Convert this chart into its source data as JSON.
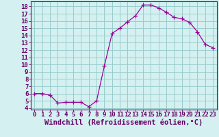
{
  "x": [
    0,
    1,
    2,
    3,
    4,
    5,
    6,
    7,
    8,
    9,
    10,
    11,
    12,
    13,
    14,
    15,
    16,
    17,
    18,
    19,
    20,
    21,
    22,
    23
  ],
  "y": [
    6.0,
    6.0,
    5.8,
    4.7,
    4.8,
    4.8,
    4.8,
    4.2,
    5.0,
    9.8,
    14.3,
    15.0,
    15.9,
    16.7,
    18.2,
    18.2,
    17.8,
    17.2,
    16.5,
    16.3,
    15.8,
    14.5,
    12.8,
    12.3
  ],
  "line_color": "#990099",
  "marker": "+",
  "markersize": 4,
  "xlabel": "Windchill (Refroidissement éolien,°C)",
  "xlim": [
    -0.5,
    23.5
  ],
  "ylim": [
    3.8,
    18.7
  ],
  "yticks": [
    4,
    5,
    6,
    7,
    8,
    9,
    10,
    11,
    12,
    13,
    14,
    15,
    16,
    17,
    18
  ],
  "xticks": [
    0,
    1,
    2,
    3,
    4,
    5,
    6,
    7,
    8,
    9,
    10,
    11,
    12,
    13,
    14,
    15,
    16,
    17,
    18,
    19,
    20,
    21,
    22,
    23
  ],
  "bg_color": "#d4f0f0",
  "grid_color": "#99cccc",
  "line_border_color": "#660066",
  "tick_color": "#660066",
  "label_color": "#660066",
  "font_size": 6.5,
  "xlabel_fontsize": 7.5
}
